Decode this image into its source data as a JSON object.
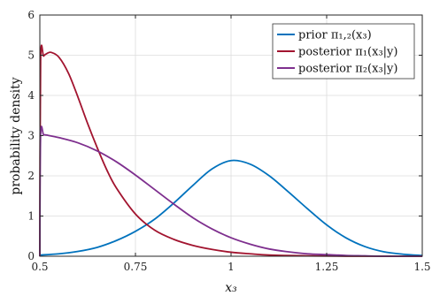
{
  "chart_data": {
    "type": "line",
    "title": "",
    "xlabel": "x₃",
    "ylabel": "probability density",
    "xlim": [
      0.5,
      1.5
    ],
    "ylim": [
      0,
      6
    ],
    "xticks": [
      0.5,
      0.75,
      1,
      1.25,
      1.5
    ],
    "xtick_labels": [
      "0.5",
      "0.75",
      "1",
      "1.25",
      "1.5"
    ],
    "yticks": [
      0,
      1,
      2,
      3,
      4,
      5,
      6
    ],
    "ytick_labels": [
      "0",
      "1",
      "2",
      "3",
      "4",
      "5",
      "6"
    ],
    "grid": true,
    "legend_position": "top-right",
    "series": [
      {
        "name": "prior π₁,₂(x₃)",
        "color": "#0072BD",
        "x": [
          0.5,
          0.55,
          0.6,
          0.65,
          0.7,
          0.75,
          0.8,
          0.85,
          0.9,
          0.95,
          1.0,
          1.05,
          1.1,
          1.15,
          1.2,
          1.25,
          1.3,
          1.35,
          1.4,
          1.45,
          1.5
        ],
        "y": [
          0.03,
          0.06,
          0.12,
          0.22,
          0.39,
          0.62,
          0.92,
          1.32,
          1.76,
          2.17,
          2.38,
          2.29,
          2.0,
          1.6,
          1.18,
          0.78,
          0.46,
          0.24,
          0.11,
          0.05,
          0.02
        ]
      },
      {
        "name": "posterior π₁(x₃|y)",
        "color": "#A2142F",
        "x": [
          0.5,
          0.502,
          0.51,
          0.52,
          0.53,
          0.55,
          0.575,
          0.6,
          0.625,
          0.65,
          0.675,
          0.7,
          0.75,
          0.8,
          0.85,
          0.9,
          0.95,
          1.0,
          1.05,
          1.1,
          1.2,
          1.3,
          1.4,
          1.5
        ],
        "y": [
          0.0,
          4.85,
          4.98,
          5.05,
          5.07,
          4.95,
          4.55,
          3.95,
          3.3,
          2.7,
          2.15,
          1.7,
          1.05,
          0.65,
          0.42,
          0.27,
          0.17,
          0.1,
          0.06,
          0.03,
          0.01,
          0.0,
          0.0,
          0.0
        ]
      },
      {
        "name": "posterior π₂(x₃|y)",
        "color": "#7E2F8E",
        "x": [
          0.5,
          0.502,
          0.51,
          0.52,
          0.55,
          0.6,
          0.65,
          0.7,
          0.75,
          0.8,
          0.85,
          0.9,
          0.95,
          1.0,
          1.05,
          1.1,
          1.15,
          1.2,
          1.25,
          1.3,
          1.35,
          1.4,
          1.45,
          1.5
        ],
        "y": [
          0.0,
          3.0,
          3.02,
          3.01,
          2.95,
          2.82,
          2.62,
          2.35,
          2.02,
          1.66,
          1.3,
          0.96,
          0.68,
          0.46,
          0.3,
          0.18,
          0.11,
          0.06,
          0.04,
          0.02,
          0.01,
          0.0,
          0.0,
          0.0
        ]
      }
    ]
  }
}
